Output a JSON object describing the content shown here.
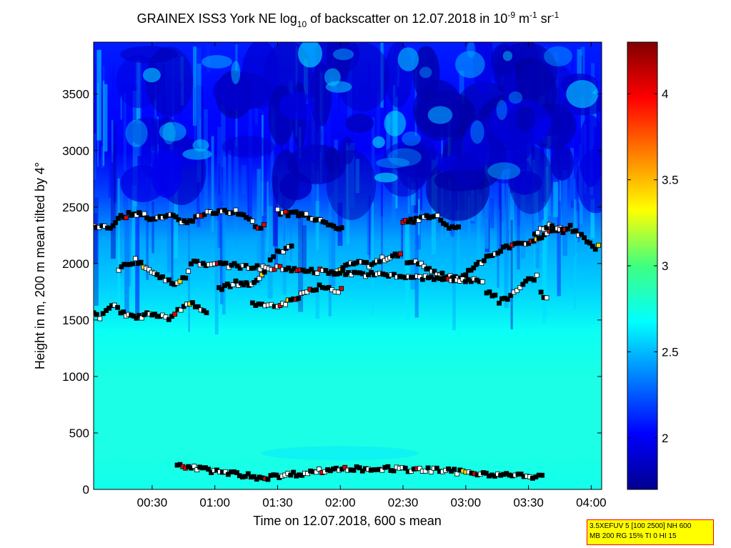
{
  "chart_data": {
    "type": "heatmap",
    "title": {
      "prefix": "GRAINEX ISS3 York NE log",
      "sub": "10",
      "middle": " of backscatter on 12.07.2018 in 10",
      "sup1": "-9",
      "unit_m": " m",
      "sup2": "-1",
      "unit_sr": " sr",
      "sup3": "-1"
    },
    "xlabel": "Time on 12.07.2018, 600 s mean",
    "ylabel": "Height in m, 200 m mean tilted by 4°",
    "x_ticks": [
      "00:30",
      "01:00",
      "01:30",
      "02:00",
      "02:30",
      "03:00",
      "03:30",
      "04:00"
    ],
    "x_tick_minutes": [
      30,
      60,
      90,
      120,
      150,
      180,
      210,
      240
    ],
    "xlim_minutes": [
      2,
      245
    ],
    "y_ticks": [
      "0",
      "500",
      "1000",
      "1500",
      "2000",
      "2500",
      "3000",
      "3500"
    ],
    "y_tick_values": [
      0,
      500,
      1000,
      1500,
      2000,
      2500,
      3000,
      3500
    ],
    "ylim": [
      0,
      3960
    ],
    "colorbar": {
      "ticks": [
        "2",
        "2.5",
        "3",
        "3.5",
        "4"
      ],
      "tick_values": [
        2,
        2.5,
        3,
        3.5,
        4
      ],
      "range": [
        1.7,
        4.3
      ],
      "colormap": "jet"
    },
    "backscatter_profile": {
      "description_levels_m": [
        0,
        300,
        500,
        1000,
        1400,
        1800,
        2200,
        2600,
        3000,
        3500,
        3960
      ],
      "log10_values": [
        2.72,
        2.74,
        2.74,
        2.74,
        2.7,
        2.55,
        2.45,
        2.2,
        2.0,
        2.05,
        2.1
      ]
    },
    "layer_series": [
      {
        "name": "",
        "points": [
          [
            2,
            1550
          ],
          [
            5,
            1530
          ],
          [
            8,
            1600
          ],
          [
            12,
            1640
          ],
          [
            15,
            1560
          ],
          [
            20,
            1540
          ],
          [
            25,
            1530
          ],
          [
            30,
            1560
          ],
          [
            35,
            1540
          ],
          [
            38,
            1510
          ],
          [
            48,
            1660
          ],
          [
            52,
            1620
          ],
          [
            56,
            1560
          ],
          [
            58,
            1500
          ]
        ]
      },
      {
        "name": "",
        "points": [
          [
            62,
            1780
          ],
          [
            70,
            1830
          ],
          [
            75,
            1810
          ],
          [
            80,
            1860
          ],
          [
            85,
            1960
          ],
          [
            88,
            2070
          ],
          [
            90,
            2110
          ],
          [
            94,
            2120
          ],
          [
            98,
            2180
          ]
        ]
      },
      {
        "name": "",
        "points": [
          [
            78,
            1640
          ],
          [
            84,
            1620
          ],
          [
            90,
            1620
          ],
          [
            95,
            1660
          ],
          [
            100,
            1710
          ],
          [
            104,
            1740
          ],
          [
            110,
            1800
          ],
          [
            116,
            1760
          ],
          [
            122,
            1770
          ]
        ]
      },
      {
        "name": "",
        "points": [
          [
            117,
            1900
          ],
          [
            120,
            1950
          ],
          [
            125,
            2010
          ],
          [
            130,
            2000
          ],
          [
            135,
            1980
          ],
          [
            140,
            2040
          ],
          [
            145,
            2060
          ],
          [
            150,
            2100
          ]
        ]
      },
      {
        "name": "",
        "points": [
          [
            152,
            1990
          ],
          [
            156,
            2000
          ],
          [
            160,
            1980
          ],
          [
            165,
            1920
          ],
          [
            170,
            1890
          ],
          [
            175,
            1880
          ],
          [
            180,
            1900
          ],
          [
            185,
            1980
          ],
          [
            190,
            2060
          ],
          [
            198,
            2110
          ]
        ]
      },
      {
        "name": "",
        "points": [
          [
            198,
            2150
          ],
          [
            205,
            2170
          ],
          [
            210,
            2180
          ],
          [
            215,
            2230
          ],
          [
            220,
            2290
          ],
          [
            225,
            2310
          ],
          [
            228,
            2270
          ]
        ]
      },
      {
        "name": "",
        "points": [
          [
            2,
            2330
          ],
          [
            6,
            2340
          ],
          [
            10,
            2330
          ],
          [
            15,
            2410
          ],
          [
            20,
            2440
          ],
          [
            25,
            2450
          ],
          [
            30,
            2390
          ],
          [
            35,
            2400
          ],
          [
            40,
            2430
          ],
          [
            44,
            2360
          ],
          [
            48,
            2380
          ],
          [
            55,
            2440
          ],
          [
            62,
            2450
          ],
          [
            70,
            2460
          ],
          [
            75,
            2400
          ],
          [
            78,
            2360
          ],
          [
            82,
            2300
          ],
          [
            85,
            2350
          ]
        ]
      },
      {
        "name": "",
        "points": [
          [
            90,
            2460
          ],
          [
            95,
            2440
          ],
          [
            100,
            2440
          ],
          [
            105,
            2420
          ],
          [
            108,
            2400
          ],
          [
            113,
            2350
          ],
          [
            118,
            2300
          ],
          [
            122,
            2310
          ]
        ]
      },
      {
        "name": "",
        "points": [
          [
            150,
            2360
          ],
          [
            155,
            2380
          ],
          [
            160,
            2410
          ],
          [
            165,
            2430
          ],
          [
            168,
            2390
          ],
          [
            172,
            2300
          ],
          [
            178,
            2330
          ]
        ]
      },
      {
        "name": "",
        "points": [
          [
            213,
            2260
          ],
          [
            220,
            2340
          ],
          [
            225,
            2300
          ],
          [
            230,
            2320
          ],
          [
            238,
            2200
          ],
          [
            242,
            2120
          ],
          [
            245,
            2170
          ]
        ]
      },
      {
        "name": "",
        "points": [
          [
            14,
            1960
          ],
          [
            18,
            1980
          ],
          [
            22,
            2030
          ],
          [
            35,
            1870
          ],
          [
            38,
            1850
          ],
          [
            42,
            1820
          ],
          [
            46,
            1890
          ],
          [
            50,
            2040
          ],
          [
            53,
            2000
          ],
          [
            188,
            1840
          ],
          [
            190,
            1750
          ],
          [
            194,
            1720
          ],
          [
            196,
            1660
          ],
          [
            200,
            1700
          ],
          [
            206,
            1800
          ],
          [
            210,
            1850
          ],
          [
            214,
            1880
          ],
          [
            216,
            1730
          ],
          [
            220,
            1690
          ]
        ]
      },
      {
        "name": "",
        "points": [
          [
            42,
            210
          ],
          [
            46,
            200
          ],
          [
            80,
            110
          ],
          [
            84,
            105
          ],
          [
            118,
            180
          ],
          [
            125,
            185
          ],
          [
            132,
            180
          ],
          [
            140,
            185
          ],
          [
            158,
            170
          ],
          [
            162,
            175
          ],
          [
            205,
            120
          ],
          [
            212,
            110
          ],
          [
            218,
            115
          ]
        ]
      }
    ]
  },
  "info_box": {
    "line1": "3.5XEFUV 5 [100 2500] NH 600",
    "line2": "MB 200 RG 15% TI 0 HI 15"
  }
}
